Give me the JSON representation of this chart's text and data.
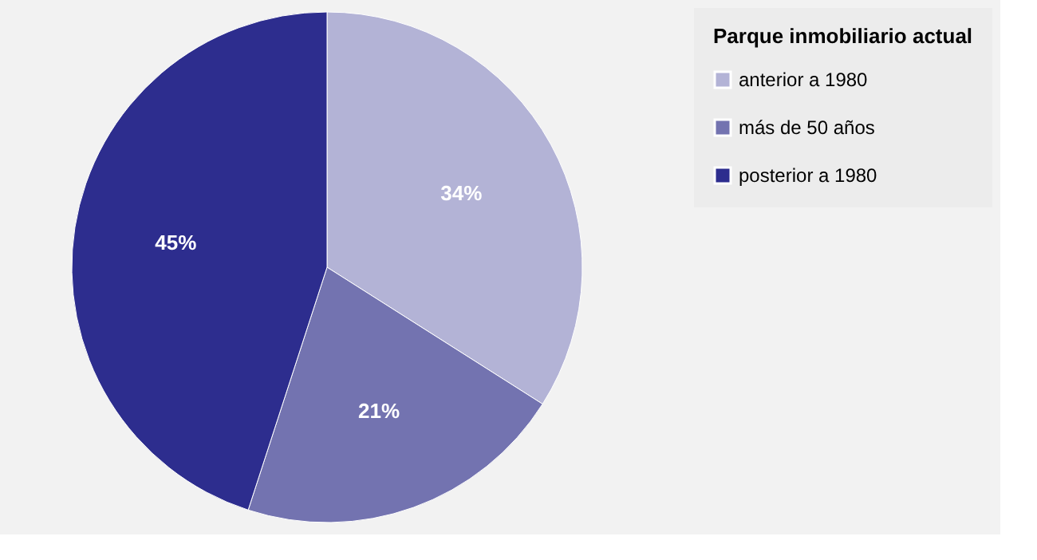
{
  "chart_data": {
    "type": "pie",
    "legend_title": "Parque inmobiliario actual",
    "categories": [
      "anterior a 1980",
      "más de 50 años",
      "posterior a 1980"
    ],
    "values": [
      34,
      21,
      45
    ],
    "colors": [
      "#b3b3d6",
      "#7373b0",
      "#2d2d8e"
    ],
    "value_labels": [
      "34%",
      "21%",
      "45%"
    ],
    "legend": "right"
  }
}
